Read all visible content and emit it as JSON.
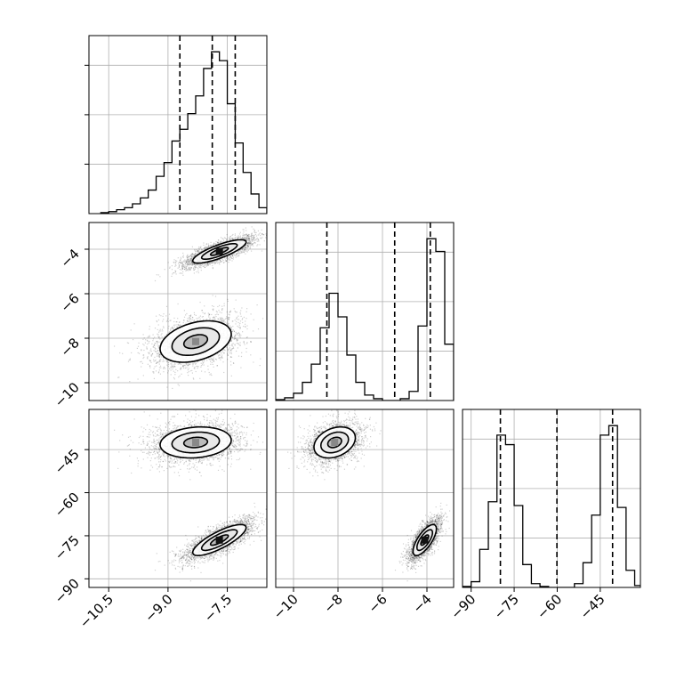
{
  "figure": {
    "title": ""
  },
  "chart_data": {
    "type": "corner",
    "grid": true,
    "variables": [
      {
        "label": "",
        "range": [
          -11.0,
          -6.5
        ],
        "ticks": [
          -10.5,
          -9.0,
          -7.5
        ],
        "tick_labels": [
          "−10.5",
          "−9.0",
          "−7.5"
        ]
      },
      {
        "label": "",
        "range": [
          -10.8,
          -2.8
        ],
        "ticks": [
          -10,
          -8,
          -6,
          -4
        ],
        "tick_labels": [
          "−10",
          "−8",
          "−6",
          "−4"
        ]
      },
      {
        "label": "",
        "range": [
          -93,
          -31
        ],
        "ticks": [
          -90,
          -75,
          -60,
          -45
        ],
        "tick_labels": [
          "−90",
          "−75",
          "−60",
          "−45"
        ]
      }
    ],
    "quantiles": [
      [
        -8.7,
        -7.88,
        -7.3
      ],
      [
        -8.5,
        -5.45,
        -3.85
      ],
      [
        -79.8,
        -60.1,
        -40.7
      ]
    ],
    "histograms": [
      {
        "bin_edges": [
          -10.7,
          -10.5,
          -10.3,
          -10.1,
          -9.9,
          -9.7,
          -9.5,
          -9.3,
          -9.1,
          -8.9,
          -8.7,
          -8.5,
          -8.3,
          -8.1,
          -7.9,
          -7.7,
          -7.5,
          -7.3,
          -7.1,
          -6.9,
          -6.7,
          -6.5
        ],
        "counts": [
          1,
          2,
          4,
          6,
          10,
          16,
          24,
          38,
          52,
          74,
          86,
          102,
          120,
          148,
          165,
          156,
          112,
          72,
          42,
          20,
          6
        ]
      },
      {
        "bin_edges": [
          -10.8,
          -10.4,
          -10.0,
          -9.6,
          -9.2,
          -8.8,
          -8.4,
          -8.0,
          -7.6,
          -7.2,
          -6.8,
          -6.4,
          -6.0,
          -5.6,
          -5.2,
          -4.8,
          -4.4,
          -4.0,
          -3.6,
          -3.2,
          -2.8
        ],
        "counts": [
          1,
          3,
          8,
          20,
          40,
          80,
          118,
          92,
          50,
          20,
          6,
          2,
          0,
          0,
          2,
          10,
          82,
          178,
          164,
          62
        ]
      },
      {
        "bin_edges": [
          -93,
          -90,
          -87,
          -84,
          -81,
          -78,
          -75,
          -72,
          -69,
          -66,
          -63,
          -60,
          -57,
          -54,
          -51,
          -48,
          -45,
          -42,
          -39,
          -36,
          -33,
          -30
        ],
        "counts": [
          1,
          6,
          40,
          90,
          160,
          150,
          86,
          24,
          4,
          1,
          0,
          0,
          0,
          4,
          26,
          76,
          160,
          170,
          84,
          18,
          2
        ]
      }
    ],
    "modes": [
      {
        "weight": 0.55,
        "mean": [
          -7.7,
          -4.1,
          -76.5
        ],
        "std": [
          0.45,
          0.35,
          3.6
        ],
        "corr": [
          [
            1,
            0.8,
            0.8
          ],
          [
            0.8,
            1,
            0.72
          ],
          [
            0.8,
            0.72,
            1
          ]
        ]
      },
      {
        "weight": 0.45,
        "mean": [
          -8.3,
          -8.15,
          -42.5
        ],
        "std": [
          0.6,
          0.62,
          3.6
        ],
        "corr": [
          [
            1,
            0.35,
            0.15
          ],
          [
            0.35,
            1,
            0.3
          ],
          [
            0.15,
            0.3,
            1
          ]
        ]
      }
    ],
    "contour_levels_sigma": [
      0.5,
      1.0,
      1.5
    ]
  }
}
